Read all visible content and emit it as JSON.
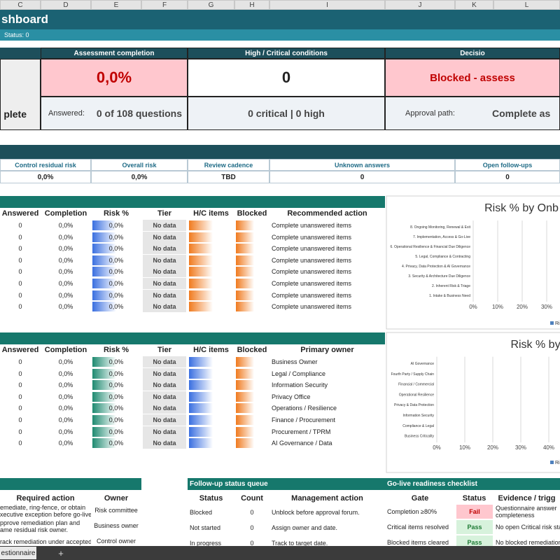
{
  "column_letters": [
    "C",
    "D",
    "E",
    "F",
    "G",
    "H",
    "I",
    "J",
    "K",
    "L"
  ],
  "title": "shboard",
  "status_line": "Status: 0",
  "summary": {
    "left_value": "plete",
    "cards": [
      {
        "header": "Assessment completion",
        "value": "0,0%",
        "detail_label": "Answered:",
        "detail_value": "0 of 108 questions"
      },
      {
        "header": "High / Critical conditions",
        "value": "0",
        "detail_value": "0 critical  |  0 high"
      },
      {
        "header": "Decisio",
        "value": "Blocked - assess",
        "detail_label": "Approval path:",
        "detail_value": "Complete as"
      }
    ]
  },
  "metrics": {
    "headers": [
      "Control residual risk",
      "Overall risk",
      "Review cadence",
      "Unknown answers",
      "Open follow-ups"
    ],
    "values": [
      "0,0%",
      "0,0%",
      "TBD",
      "0",
      "0"
    ]
  },
  "phase_table": {
    "headers": [
      "Answered",
      "Completion",
      "Risk %",
      "Tier",
      "H/C items",
      "Blocked",
      "Recommended action"
    ],
    "rows": [
      [
        "0",
        "0,0%",
        "0,0%",
        "No data",
        "Complete unanswered items"
      ],
      [
        "0",
        "0,0%",
        "0,0%",
        "No data",
        "Complete unanswered items"
      ],
      [
        "0",
        "0,0%",
        "0,0%",
        "No data",
        "Complete unanswered items"
      ],
      [
        "0",
        "0,0%",
        "0,0%",
        "No data",
        "Complete unanswered items"
      ],
      [
        "0",
        "0,0%",
        "0,0%",
        "No data",
        "Complete unanswered items"
      ],
      [
        "0",
        "0,0%",
        "0,0%",
        "No data",
        "Complete unanswered items"
      ],
      [
        "0",
        "0,0%",
        "0,0%",
        "No data",
        "Complete unanswered items"
      ],
      [
        "0",
        "0,0%",
        "0,0%",
        "No data",
        "Complete unanswered items"
      ]
    ]
  },
  "domain_table": {
    "headers": [
      "Answered",
      "Completion",
      "Risk %",
      "Tier",
      "H/C items",
      "Blocked",
      "Primary owner"
    ],
    "rows": [
      [
        "0",
        "0,0%",
        "0,0%",
        "No data",
        "Business Owner"
      ],
      [
        "0",
        "0,0%",
        "0,0%",
        "No data",
        "Legal / Compliance"
      ],
      [
        "0",
        "0,0%",
        "0,0%",
        "No data",
        "Information Security"
      ],
      [
        "0",
        "0,0%",
        "0,0%",
        "No data",
        "Privacy Office"
      ],
      [
        "0",
        "0,0%",
        "0,0%",
        "No data",
        "Operations / Resilience"
      ],
      [
        "0",
        "0,0%",
        "0,0%",
        "No data",
        "Finance / Procurement"
      ],
      [
        "0",
        "0,0%",
        "0,0%",
        "No data",
        "Procurement / TPRM"
      ],
      [
        "0",
        "0,0%",
        "0,0%",
        "No data",
        "AI Governance / Data"
      ]
    ]
  },
  "charts": [
    {
      "type": "bar",
      "title": "Risk % by Onb",
      "categories": [
        "8. Ongoing Monitoring, Renewal & Exit",
        "7. Implementation, Access & Go-Live",
        "6. Operational Resilience & Financial Due Diligence",
        "5. Legal, Compliance & Contracting",
        "4. Privacy, Data Protection & AI Governance",
        "3. Security & Architecture Due Diligence",
        "2. Inherent Risk & Triage",
        "1. Intake & Business Need"
      ],
      "series": [
        {
          "name": "Ri",
          "color": "#4f81bd",
          "values": [
            0,
            0,
            0,
            0,
            0,
            0,
            0,
            0
          ]
        }
      ],
      "xlim": [
        0,
        30
      ],
      "xticks": [
        {
          "value": 0,
          "label": "0%"
        },
        {
          "value": 10,
          "label": "10%"
        },
        {
          "value": 20,
          "label": "20%"
        },
        {
          "value": 30,
          "label": "30%"
        }
      ],
      "grid": true
    },
    {
      "type": "bar",
      "title": "Risk % by",
      "categories": [
        "AI Governance",
        "Fourth Party / Supply Chain",
        "Financial / Commercial",
        "Operational Resilience",
        "Privacy & Data Protection",
        "Information Security",
        "Compliance & Legal",
        "Business Criticality"
      ],
      "series": [
        {
          "name": "Ri",
          "color": "#4f81bd",
          "values": [
            0,
            0,
            0,
            0,
            0,
            0,
            0,
            0
          ]
        }
      ],
      "xlim": [
        0,
        40
      ],
      "xticks": [
        {
          "value": 0,
          "label": "0%"
        },
        {
          "value": 10,
          "label": "10%"
        },
        {
          "value": 20,
          "label": "20%"
        },
        {
          "value": 30,
          "label": "30%"
        },
        {
          "value": 40,
          "label": "40%"
        }
      ],
      "grid": true
    }
  ],
  "actions": {
    "headers": [
      "Required action",
      "Owner"
    ],
    "rows": [
      {
        "lines": [
          "emediate, ring-fence, or obtain",
          "xecutive exception before go-live."
        ],
        "owner": "Risk committee"
      },
      {
        "lines": [
          "pprove remediation plan and",
          "ame residual risk owner."
        ],
        "owner": "Business owner"
      },
      {
        "lines": [
          "rack remediation under accepted"
        ],
        "owner": "Control owner"
      }
    ]
  },
  "followup": {
    "title": "Follow-up status queue",
    "headers": [
      "Status",
      "Count",
      "Management action"
    ],
    "rows": [
      [
        "Blocked",
        "0",
        "Unblock before approval forum."
      ],
      [
        "Not started",
        "0",
        "Assign owner and date."
      ],
      [
        "In progress",
        "0",
        "Track to target date."
      ]
    ]
  },
  "golive": {
    "title": "Go-live readiness checklist",
    "headers": [
      "Gate",
      "Status",
      "Evidence / trigg"
    ],
    "rows": [
      {
        "gate": "Completion ≥80%",
        "status": "Fail",
        "evidence": [
          "Questionnaire answer",
          "completeness"
        ]
      },
      {
        "gate": "Critical items resolved",
        "status": "Pass",
        "evidence": [
          "No open Critical risk stat"
        ]
      },
      {
        "gate": "Blocked items cleared",
        "status": "Pass",
        "evidence": [
          "No blocked remediation"
        ]
      }
    ]
  },
  "tabs": [
    "estionnaire",
    "+"
  ]
}
